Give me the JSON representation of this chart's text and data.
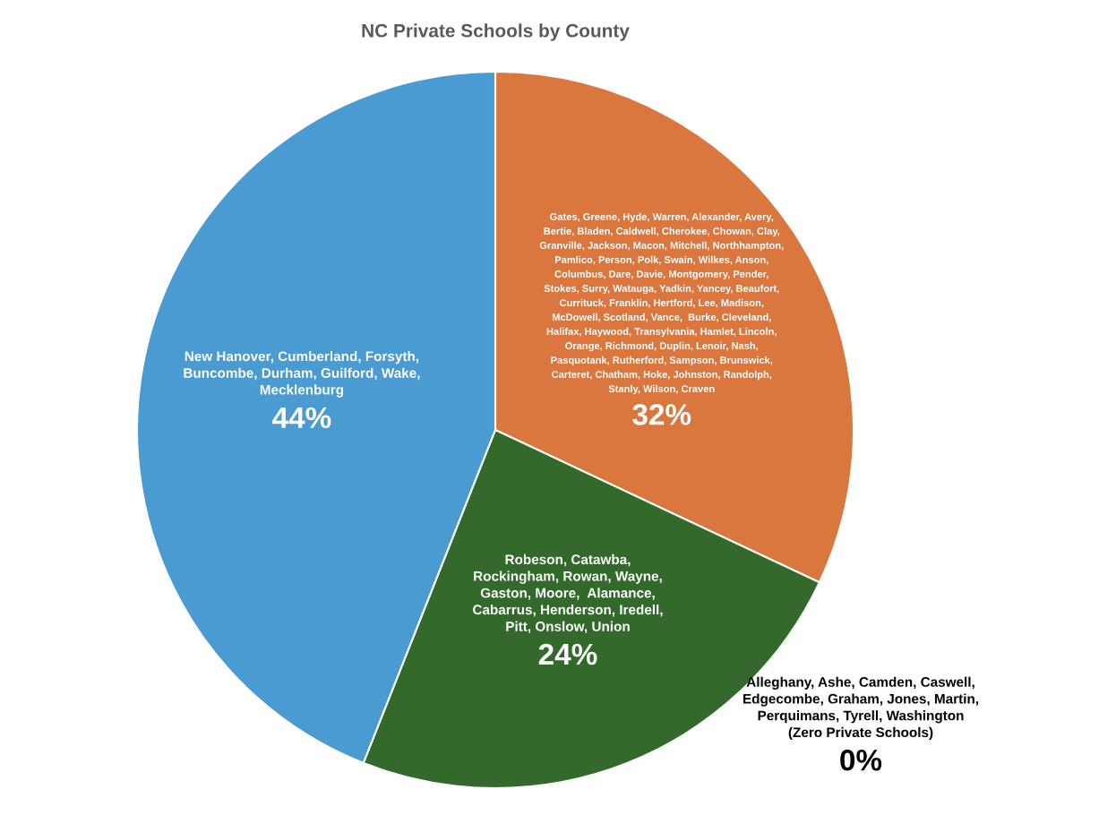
{
  "chart_data": {
    "type": "pie",
    "title": "NC Private Schools by County",
    "categories": [
      "Gates, Greene, Hyde, Warren, Alexander, Avery,\nBertie, Bladen, Caldwell, Cherokee, Chowan, Clay,\nGranville, Jackson, Macon, Mitchell, Northhampton,\nPamlico, Person, Polk, Swain, Wilkes, Anson,\nColumbus, Dare, Davie, Montgomery, Pender,\nStokes, Surry, Watauga, Yadkin, Yancey, Beaufort,\nCurrituck, Franklin, Hertford, Lee, Madison,\nMcDowell, Scotland, Vance,  Burke, Cleveland,\nHalifax, Haywood, Transylvania, Hamlet, Lincoln,\nOrange, Richmond, Duplin, Lenoir, Nash,\nPasquotank, Rutherford, Sampson, Brunswick,\nCarteret, Chatham, Hoke, Johnston, Randolph,\nStanly, Wilson, Craven",
      "Robeson, Catawba,\nRockingham, Rowan, Wayne,\nGaston, Moore,  Alamance,\nCabarrus, Henderson, Iredell,\nPitt, Onslow, Union",
      "Alleghany, Ashe, Camden, Caswell,\nEdgecombe, Graham, Jones, Martin,\nPerquimans, Tyrell, Washington\n(Zero Private Schools)",
      "New Hanover, Cumberland, Forsyth,\nBuncombe, Durham, Guilford, Wake,\nMecklenburg"
    ],
    "values": [
      32,
      24,
      0,
      44
    ],
    "colors": [
      "#d9773f",
      "#336a2c",
      "#a5a5a5",
      "#4a9bd1"
    ],
    "value_labels": [
      "32%",
      "24%",
      "0%",
      "44%"
    ],
    "legend": false
  }
}
